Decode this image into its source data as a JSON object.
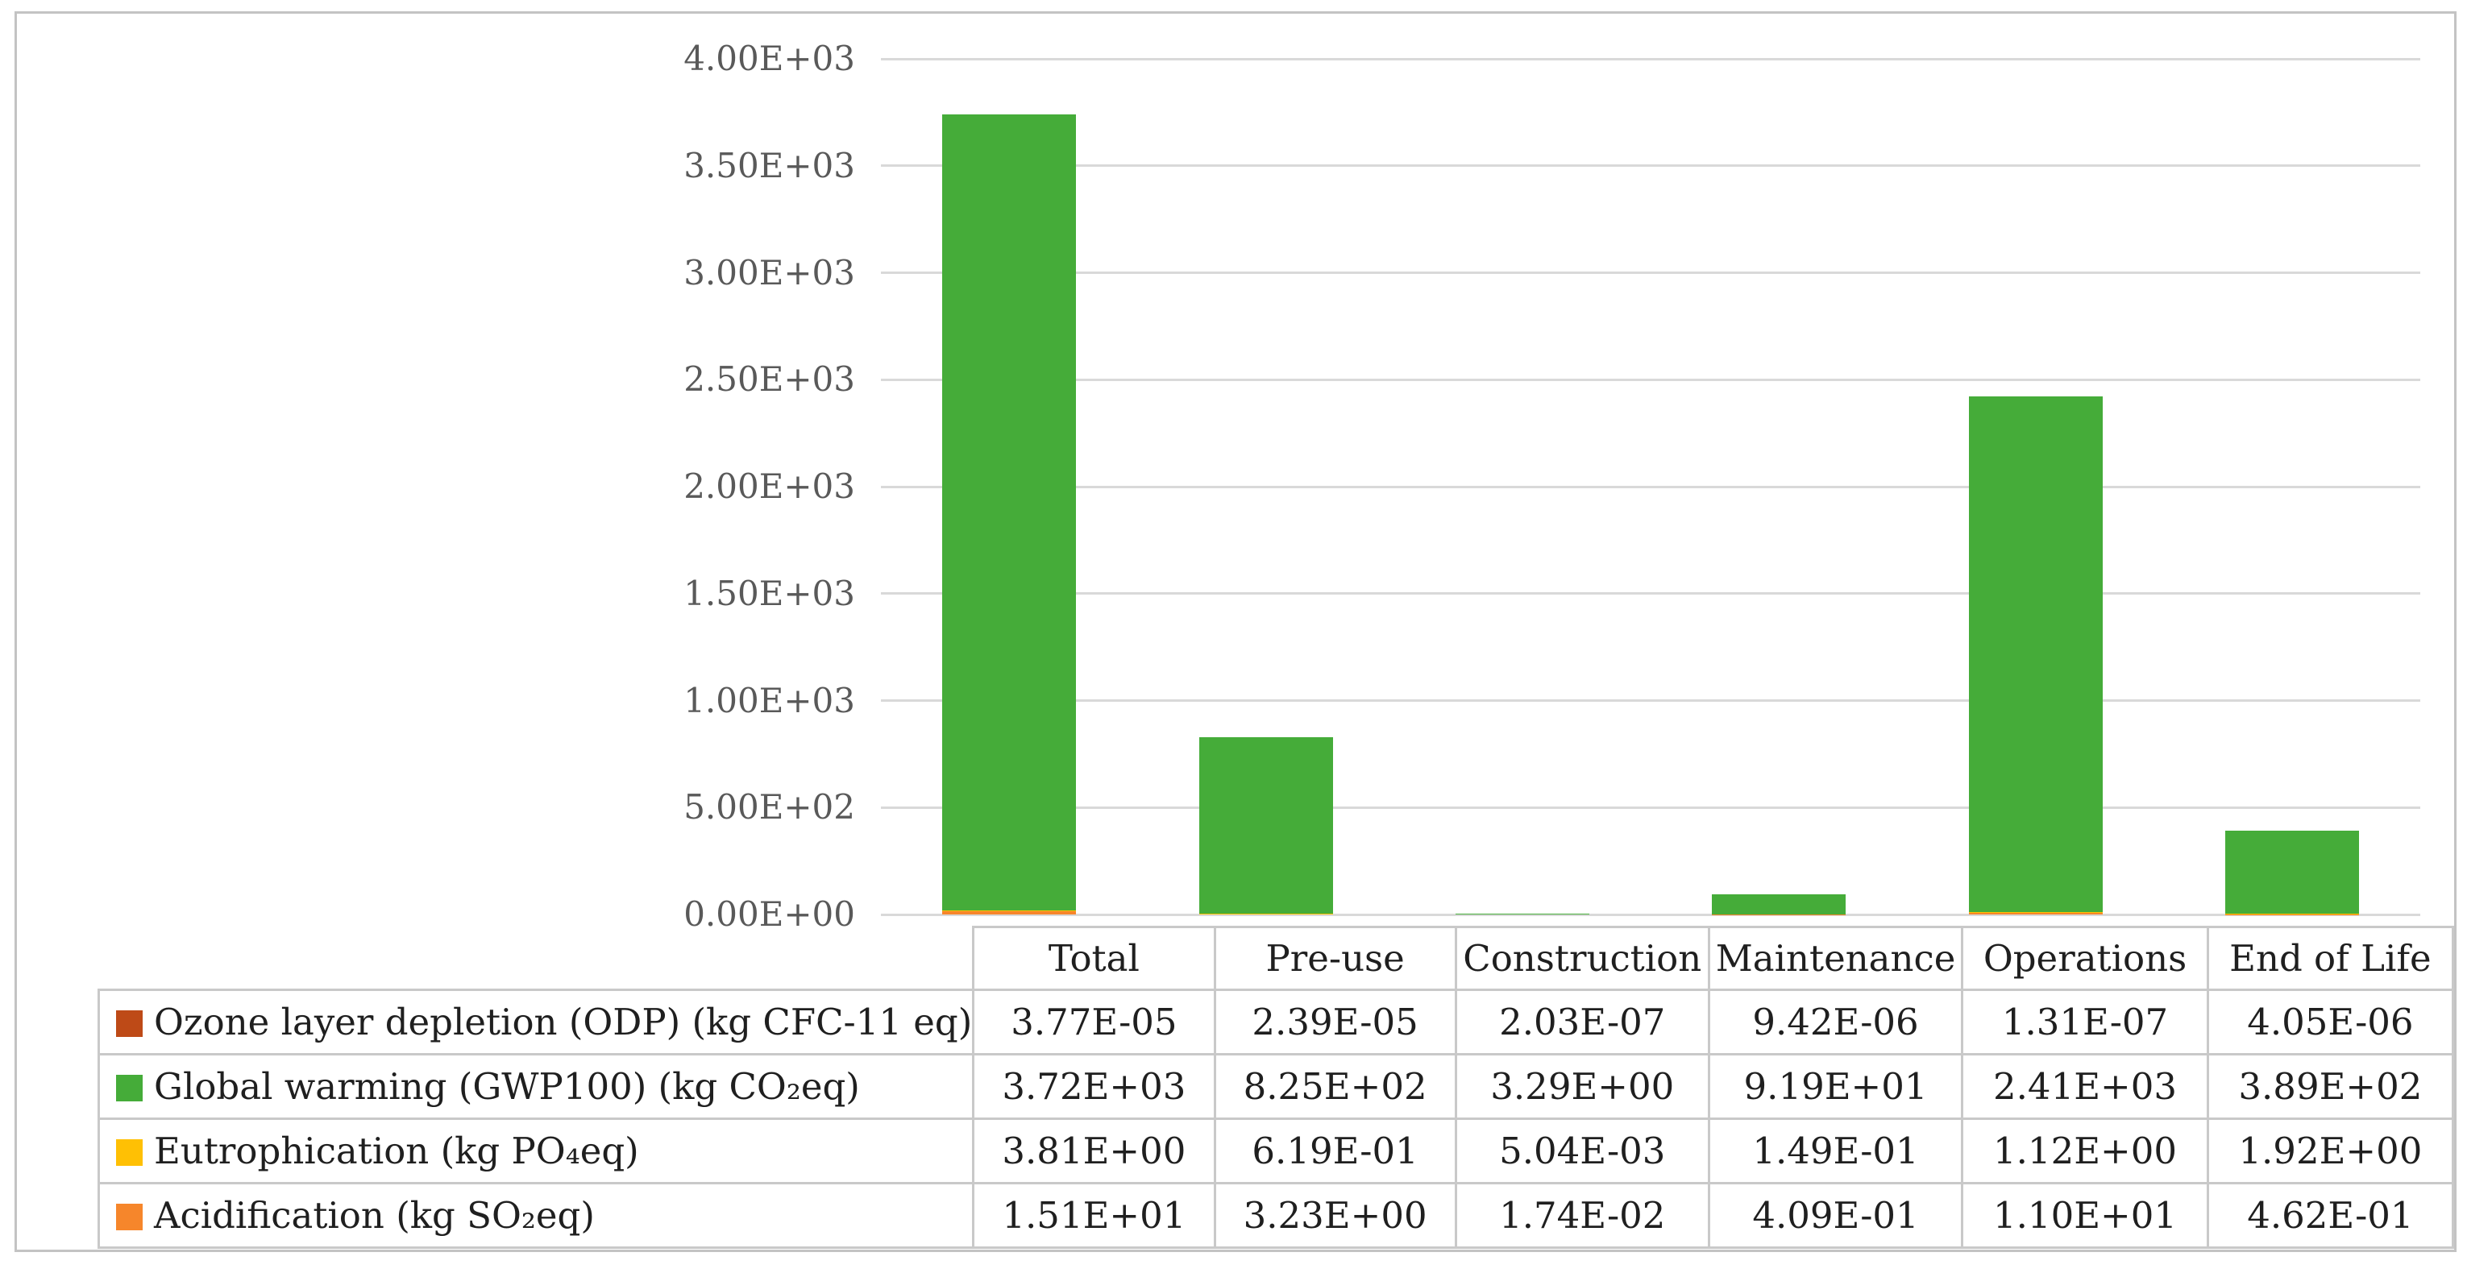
{
  "figure": {
    "background_color": "#ffffff",
    "frame_border_color": "#c3c3c3",
    "gridline_color": "#d9d9d9",
    "axis_text_color": "#595959",
    "table_border_color": "#c9c9c9"
  },
  "chart_data": {
    "type": "bar",
    "stacked": true,
    "title": "",
    "xlabel": "",
    "ylabel": "",
    "grid": true,
    "legend_position": "table-left",
    "categories": [
      "Total",
      "Pre-use",
      "Construction",
      "Maintenance",
      "Operations",
      "End of Life"
    ],
    "series": [
      {
        "name": "Ozone layer depletion (ODP) (kg CFC-11 eq)",
        "color": "#be4a17",
        "values": [
          "3.77E-05",
          "2.39E-05",
          "2.03E-07",
          "9.42E-06",
          "1.31E-07",
          "4.05E-06"
        ]
      },
      {
        "name": "Global warming (GWP100) (kg CO₂eq)",
        "color": "#45ac39",
        "values": [
          "3.72E+03",
          "8.25E+02",
          "3.29E+00",
          "9.19E+01",
          "2.41E+03",
          "3.89E+02"
        ]
      },
      {
        "name": "Eutrophication (kg PO₄eq)",
        "color": "#ffc004",
        "values": [
          "3.81E+00",
          "6.19E-01",
          "5.04E-03",
          "1.49E-01",
          "1.12E+00",
          "1.92E+00"
        ]
      },
      {
        "name": "Acidification (kg SO₂eq)",
        "color": "#f6862b",
        "values": [
          "1.51E+01",
          "3.23E+00",
          "1.74E-02",
          "4.09E-01",
          "1.10E+01",
          "4.62E-01"
        ]
      }
    ],
    "stack_order_bottom_to_top": [
      3,
      2,
      1,
      0
    ],
    "y_axis": {
      "min": 0,
      "max": 4000,
      "tick_labels": [
        "0.00E+00",
        "5.00E+02",
        "1.00E+03",
        "1.50E+03",
        "2.00E+03",
        "2.50E+03",
        "3.00E+03",
        "3.50E+03",
        "4.00E+03"
      ]
    }
  }
}
